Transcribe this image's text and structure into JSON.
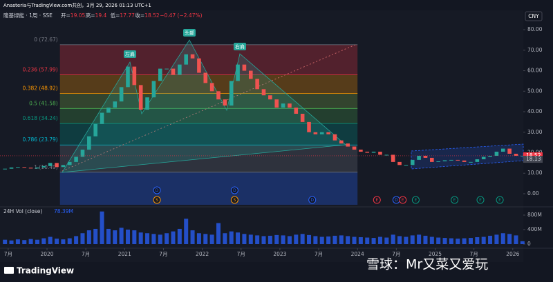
{
  "header": {
    "credit": "Anasteria与TradingView.com共创，3月 29, 2026 01:13 UTC+1",
    "symbol": "隆基绿能 · 1周 · SSE",
    "ohlc": [
      {
        "label": "开=",
        "value": 19.05
      },
      {
        "label": "高=",
        "value": 19.4
      },
      {
        "label": "低=",
        "value": 17.77
      },
      {
        "label": "收=",
        "value": 18.52
      }
    ],
    "change": "−0.47 (−2.47%)",
    "currency": "CNY"
  },
  "chart_data": {
    "type": "candlestick",
    "x": [
      "2019-06",
      "2019-07",
      "2019-08",
      "2019-09",
      "2019-10",
      "2019-11",
      "2019-12",
      "2020-01",
      "2020-02",
      "2020-03",
      "2020-04",
      "2020-05",
      "2020-06",
      "2020-07",
      "2020-08",
      "2020-09",
      "2020-10",
      "2020-11",
      "2020-12",
      "2021-01",
      "2021-02",
      "2021-03",
      "2021-04",
      "2021-05",
      "2021-06",
      "2021-07",
      "2021-08",
      "2021-09",
      "2021-10",
      "2021-11",
      "2021-12",
      "2022-01",
      "2022-02",
      "2022-03",
      "2022-04",
      "2022-05",
      "2022-06",
      "2022-07",
      "2022-08",
      "2022-09",
      "2022-10",
      "2022-11",
      "2022-12",
      "2023-01",
      "2023-02",
      "2023-03",
      "2023-04",
      "2023-05",
      "2023-06",
      "2023-07",
      "2023-08",
      "2023-09",
      "2023-10",
      "2023-11",
      "2023-12",
      "2024-01",
      "2024-02",
      "2024-03",
      "2024-04",
      "2024-05",
      "2024-06",
      "2024-07",
      "2024-08",
      "2024-09",
      "2024-10",
      "2024-11",
      "2024-12",
      "2025-01",
      "2025-02",
      "2025-03",
      "2025-04",
      "2025-05",
      "2025-06",
      "2025-07",
      "2025-08",
      "2025-09",
      "2025-10",
      "2025-11",
      "2025-12",
      "2026-01",
      "2026-02"
    ],
    "series": [
      {
        "name": "隆基绿能",
        "values": [
          12.2,
          12.8,
          13,
          12.7,
          12.3,
          12.8,
          13.5,
          15,
          13,
          14,
          15.5,
          18,
          21.5,
          28,
          34,
          39.5,
          42,
          45,
          52,
          62,
          53,
          41,
          47,
          55,
          61,
          61,
          58,
          63,
          68,
          66,
          59,
          54,
          50,
          46,
          43,
          55,
          63,
          60,
          56,
          51,
          48,
          46,
          42,
          44,
          42,
          39,
          35,
          30,
          29,
          30,
          29,
          26,
          24.5,
          23,
          21.5,
          20.5,
          20,
          20.5,
          19,
          19,
          15.5,
          14,
          14,
          16.5,
          18.5,
          17.5,
          15.5,
          15.8,
          16.3,
          16.5,
          16.2,
          15.5,
          15.5,
          16.8,
          18,
          18.5,
          20.5,
          22,
          19.5,
          18.5,
          18.52
        ]
      }
    ],
    "up_color": "#26a69a",
    "down_color": "#ef5350",
    "ylim": [
      -6.4,
      84.4
    ],
    "yticks": [
      {
        "value": 0,
        "label": "0.00"
      },
      {
        "value": 10,
        "label": "10.00"
      },
      {
        "value": 20,
        "label": "20.00"
      },
      {
        "value": 30,
        "label": "30.00"
      },
      {
        "value": 40,
        "label": "40.00"
      },
      {
        "value": 50,
        "label": "50.00"
      },
      {
        "value": 60,
        "label": "60.00"
      },
      {
        "value": 70,
        "label": "70.00"
      },
      {
        "value": 80,
        "label": "80.00"
      }
    ],
    "marker_price": 18.13,
    "xticks": [
      {
        "value": "2019-07",
        "label": "7月"
      },
      {
        "value": "2020-01",
        "label": "2020"
      },
      {
        "value": "2020-07",
        "label": "7月"
      },
      {
        "value": "2021-01",
        "label": "2021"
      },
      {
        "value": "2021-07",
        "label": "7月"
      },
      {
        "value": "2022-01",
        "label": "2022"
      },
      {
        "value": "2022-07",
        "label": "7月"
      },
      {
        "value": "2023-01",
        "label": "2023"
      },
      {
        "value": "2023-07",
        "label": "7月"
      },
      {
        "value": "2024-01",
        "label": "2024"
      },
      {
        "value": "2024-07",
        "label": "7月"
      },
      {
        "value": "2025-01",
        "label": "2025"
      },
      {
        "value": "2025-07",
        "label": "7月"
      },
      {
        "value": "2026-01",
        "label": "2026"
      }
    ],
    "fib_range": [
      "2020-03",
      "2024-01"
    ],
    "fib_levels": [
      {
        "value": 72.67,
        "label": "0 (72.67)",
        "color": "#787b86",
        "fill": "rgba(242,54,69,0.28)"
      },
      {
        "value": 57.99,
        "label": "0.236 (57.99)",
        "color": "#f23645",
        "fill": "rgba(255,152,0,0.28)"
      },
      {
        "value": 48.92,
        "label": "0.382 (48.92)",
        "color": "#ff9800",
        "fill": "rgba(139,195,74,0.25)"
      },
      {
        "value": 41.58,
        "label": "0.5 (41.58)",
        "color": "#4caf50",
        "fill": "rgba(76,175,80,0.25)"
      },
      {
        "value": 34.24,
        "label": "0.618 (34.24)",
        "color": "#089981",
        "fill": "rgba(0,150,136,0.28)"
      },
      {
        "value": 23.79,
        "label": "0.786 (23.79)",
        "color": "#00bcd4",
        "fill": "rgba(120,123,134,0.25)"
      },
      {
        "value": 10.49,
        "label": "1 (10.49)",
        "color": "#787b86",
        "fill": "rgba(41,98,255,0.3)"
      }
    ],
    "annotations": [
      "左肩",
      "头部",
      "右肩"
    ],
    "events": [
      {
        "label": "D",
        "x": "2021-06",
        "color": "#2962ff"
      },
      {
        "label": "S",
        "x": "2021-06",
        "color": "#ff9800"
      },
      {
        "label": "D",
        "x": "2022-06",
        "color": "#2962ff"
      },
      {
        "label": "S",
        "x": "2022-06",
        "color": "#ff9800"
      },
      {
        "label": "D",
        "x": "2023-06",
        "color": "#2962ff"
      },
      {
        "label": "E",
        "x": "2024-04",
        "color": "#f23645"
      },
      {
        "label": "D",
        "x": "2024-07",
        "color": "#2962ff"
      },
      {
        "label": "E",
        "x": "2024-08",
        "color": "#f23645"
      },
      {
        "label": "E",
        "x": "2024-10",
        "color": "#089981"
      },
      {
        "label": "E",
        "x": "2025-04",
        "color": "#089981"
      },
      {
        "label": "E",
        "x": "2025-08",
        "color": "#089981"
      },
      {
        "label": "E",
        "x": "2025-11",
        "color": "#089981"
      }
    ],
    "volume": {
      "name": "24H Vol (close)",
      "values": [
        120,
        100,
        130,
        110,
        140,
        120,
        160,
        200,
        150,
        130,
        160,
        220,
        300,
        380,
        420,
        900,
        420,
        380,
        450,
        400,
        380,
        320,
        300,
        280,
        260,
        300,
        350,
        420,
        700,
        380,
        300,
        280,
        260,
        580,
        300,
        350,
        320,
        280,
        260,
        240,
        220,
        230,
        250,
        240,
        220,
        260,
        280,
        250,
        220,
        200,
        210,
        230,
        240,
        220,
        200,
        190,
        180,
        170,
        200,
        180,
        260,
        220,
        200,
        240,
        260,
        230,
        200,
        180,
        170,
        160,
        150,
        160,
        170,
        190,
        200,
        230,
        260,
        300,
        280,
        240,
        78.39
      ],
      "value_labels": {
        "80": "78.39M"
      },
      "ylim": [
        0,
        990
      ],
      "yticks": [
        {
          "value": 0,
          "label": "0"
        },
        {
          "value": 400,
          "label": "400M"
        },
        {
          "value": 800,
          "label": "800M"
        }
      ],
      "color": "#2962ff"
    }
  },
  "footer": {
    "logo": "TradingView",
    "watermark": "雪球：Mr又菜又爱玩"
  }
}
